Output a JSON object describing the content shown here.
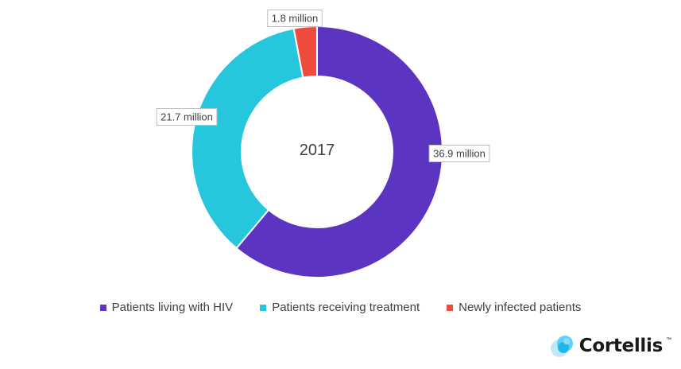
{
  "chart_data": {
    "type": "pie",
    "variant": "donut",
    "center_label": "2017",
    "categories": [
      "Patients living with HIV",
      "Patients receiving treatment",
      "Newly infected patients"
    ],
    "values": [
      36.9,
      21.7,
      1.8
    ],
    "data_labels": [
      "36.9 million",
      "21.7 million",
      "1.8 million"
    ],
    "colors": [
      "#5b34c1",
      "#26c6dc",
      "#f04c3e"
    ],
    "legend_position": "bottom"
  },
  "branding": {
    "logo_text": "Cortellis",
    "logo_mark": "™"
  }
}
